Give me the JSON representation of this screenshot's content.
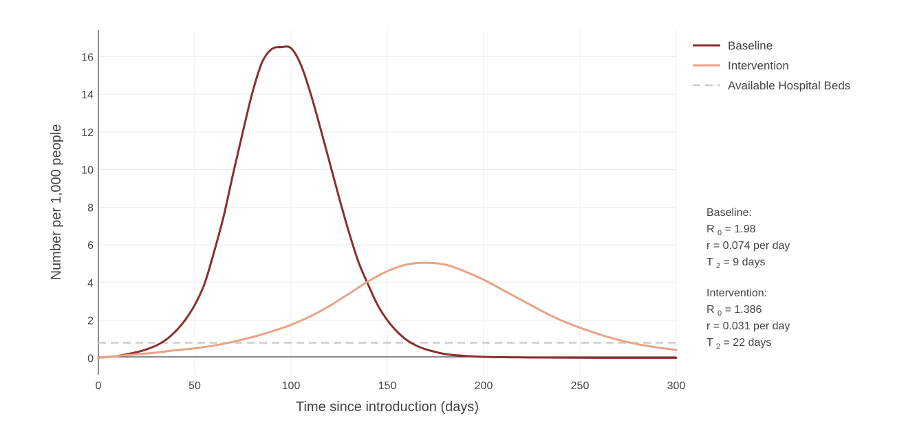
{
  "chart_data": {
    "type": "line",
    "xlabel": "Time since introduction (days)",
    "ylabel": "Number per 1,000 people",
    "xlim": [
      0,
      300
    ],
    "ylim": [
      -0.9,
      17.4
    ],
    "x_ticks": [
      "0",
      "50",
      "100",
      "150",
      "200",
      "250",
      "300"
    ],
    "y_ticks": [
      "0",
      "2",
      "4",
      "6",
      "8",
      "10",
      "12",
      "14",
      "16"
    ],
    "grid": true,
    "legend_position": "top-right",
    "series": [
      {
        "name": "Baseline",
        "color": "#8b2e2e",
        "style": "solid",
        "x": [
          0,
          10,
          20,
          25,
          30,
          35,
          40,
          45,
          50,
          55,
          60,
          65,
          70,
          75,
          80,
          85,
          90,
          95,
          100,
          105,
          110,
          115,
          120,
          125,
          130,
          135,
          140,
          145,
          150,
          155,
          160,
          165,
          170,
          180,
          190,
          200,
          210,
          220,
          240,
          260,
          280,
          300
        ],
        "y": [
          0.0,
          0.1,
          0.3,
          0.45,
          0.65,
          0.95,
          1.4,
          2.0,
          2.8,
          3.9,
          5.6,
          7.5,
          9.8,
          12.0,
          14.1,
          15.7,
          16.4,
          16.5,
          16.45,
          15.6,
          14.1,
          12.3,
          10.4,
          8.5,
          6.7,
          5.1,
          3.9,
          2.8,
          2.0,
          1.4,
          0.95,
          0.65,
          0.45,
          0.2,
          0.1,
          0.05,
          0.03,
          0.02,
          0.01,
          0.0,
          0.0,
          0.0
        ]
      },
      {
        "name": "Intervention",
        "color": "#e9a386",
        "style": "solid",
        "x": [
          0,
          10,
          20,
          30,
          40,
          50,
          60,
          70,
          80,
          90,
          100,
          110,
          120,
          130,
          140,
          150,
          160,
          170,
          180,
          190,
          200,
          210,
          220,
          230,
          240,
          250,
          260,
          270,
          280,
          290,
          300
        ],
        "y": [
          0.0,
          0.1,
          0.18,
          0.28,
          0.4,
          0.5,
          0.65,
          0.85,
          1.1,
          1.4,
          1.75,
          2.2,
          2.75,
          3.4,
          4.05,
          4.6,
          4.95,
          5.05,
          4.95,
          4.6,
          4.15,
          3.6,
          3.05,
          2.5,
          2.0,
          1.6,
          1.25,
          0.95,
          0.72,
          0.55,
          0.42
        ]
      },
      {
        "name": "Available Hospital Beds",
        "color": "#cccccc",
        "style": "dashed",
        "x": [
          0,
          300
        ],
        "y": [
          0.8,
          0.8
        ]
      }
    ],
    "annotations": [
      {
        "title": "Baseline:",
        "r0_prefix": "R",
        "r0_sub": "0",
        "r0_value": "= 1.98",
        "r_line": "r = 0.074  per day",
        "t2_prefix": "T",
        "t2_sub": "2",
        "t2_value": "=  9  days"
      },
      {
        "title": "Intervention:",
        "r0_prefix": "R",
        "r0_sub": "0",
        "r0_value": "= 1.386",
        "r_line": "r = 0.031  per day",
        "t2_prefix": "T",
        "t2_sub": "2",
        "t2_value": "=  22  days"
      }
    ]
  }
}
